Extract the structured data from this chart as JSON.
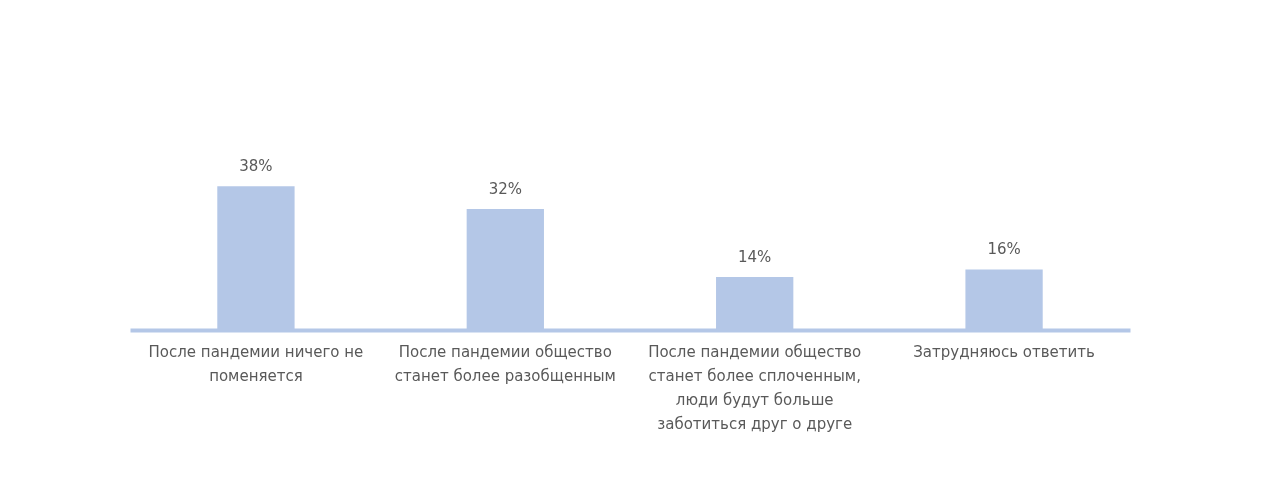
{
  "chart_data": {
    "type": "bar",
    "categories": [
      "После пандемии ничего не поменяется",
      "После пандемии общество станет более разобщенным",
      "После пандемии общество станет более сплоченным, люди будут больше заботиться друг о друге",
      "Затрудняюсь ответить"
    ],
    "values": [
      38,
      32,
      14,
      16
    ],
    "value_labels": [
      "38%",
      "32%",
      "14%",
      "16%"
    ],
    "color": "#b4c7e7",
    "grid": false
  }
}
